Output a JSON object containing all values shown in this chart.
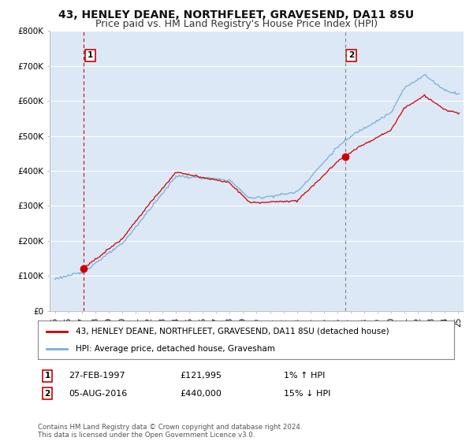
{
  "title": "43, HENLEY DEANE, NORTHFLEET, GRAVESEND, DA11 8SU",
  "subtitle": "Price paid vs. HM Land Registry's House Price Index (HPI)",
  "ylim": [
    0,
    800000
  ],
  "yticks": [
    0,
    100000,
    200000,
    300000,
    400000,
    500000,
    600000,
    700000,
    800000
  ],
  "ytick_labels": [
    "£0",
    "£100K",
    "£200K",
    "£300K",
    "£400K",
    "£500K",
    "£600K",
    "£700K",
    "£800K"
  ],
  "fig_bg_color": "#ffffff",
  "plot_bg_color": "#dce8f5",
  "grid_color": "#ffffff",
  "sale1_year": 1997.15,
  "sale1_price": 121995,
  "sale2_year": 2016.59,
  "sale2_price": 440000,
  "legend_line1": "43, HENLEY DEANE, NORTHFLEET, GRAVESEND, DA11 8SU (detached house)",
  "legend_line2": "HPI: Average price, detached house, Gravesham",
  "annotation1_date": "27-FEB-1997",
  "annotation1_price": "£121,995",
  "annotation1_hpi": "1% ↑ HPI",
  "annotation2_date": "05-AUG-2016",
  "annotation2_price": "£440,000",
  "annotation2_hpi": "15% ↓ HPI",
  "footer": "Contains HM Land Registry data © Crown copyright and database right 2024.\nThis data is licensed under the Open Government Licence v3.0.",
  "line_color_red": "#cc0000",
  "line_color_blue": "#7aaed6",
  "title_fontsize": 10,
  "subtitle_fontsize": 9
}
